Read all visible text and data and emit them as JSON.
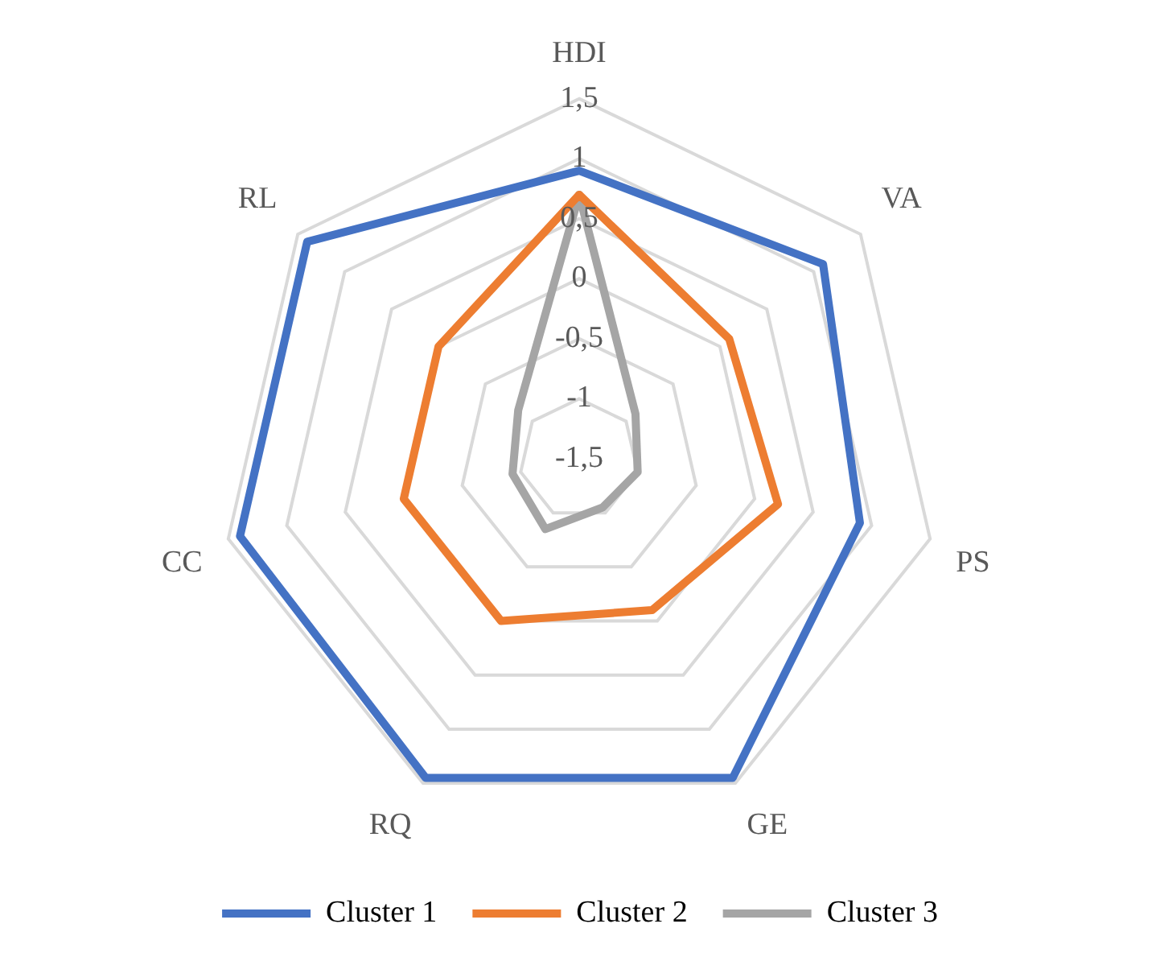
{
  "chart_data": {
    "type": "radar",
    "categories": [
      "HDI",
      "VA",
      "PS",
      "GE",
      "RQ",
      "CC",
      "RL"
    ],
    "series": [
      {
        "name": "Cluster 1",
        "color": "#4472c4",
        "values": [
          0.9,
          1.1,
          0.9,
          1.45,
          1.45,
          1.4,
          1.4
        ]
      },
      {
        "name": "Cluster 2",
        "color": "#ed7d31",
        "values": [
          0.7,
          0.1,
          0.2,
          -0.1,
          0,
          0,
          0
        ]
      },
      {
        "name": "Cluster 3",
        "color": "#a5a5a5",
        "values": [
          0.7,
          -0.9,
          -1,
          -1.05,
          -0.85,
          -0.93,
          -0.85
        ]
      }
    ],
    "ylim": [
      -1.5,
      1.5
    ],
    "yticks": [
      {
        "value": -1.5,
        "label": "-1,5"
      },
      -1,
      {
        "value": -0.5,
        "label": "-0,5"
      },
      0,
      {
        "value": 0.5,
        "label": "0,5"
      },
      1,
      {
        "value": 1.5,
        "label": "1,5"
      }
    ],
    "grid": true,
    "legend": "bottom",
    "marker": "none",
    "line_style": "solid"
  }
}
